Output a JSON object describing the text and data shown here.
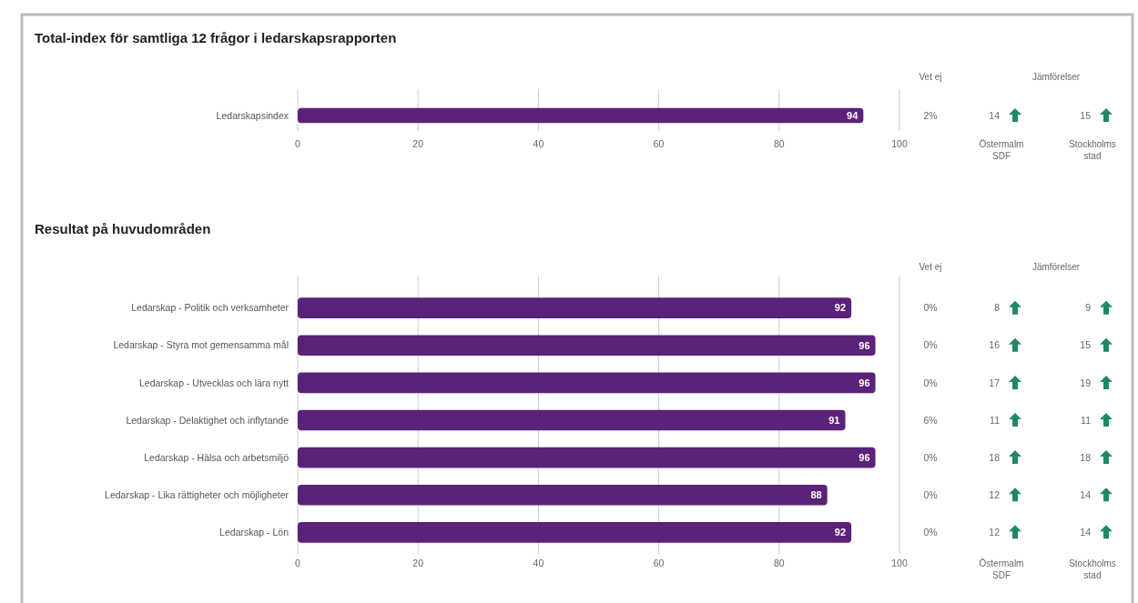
{
  "chart_data": [
    {
      "type": "bar",
      "orientation": "horizontal",
      "title": "Total-index för samtliga 12 frågor i ledarskapsrapporten",
      "categories": [
        "Ledarskapsindex"
      ],
      "values": [
        94
      ],
      "color": "#5c2178",
      "xlim": [
        0,
        100
      ],
      "xticks": [
        0,
        20,
        40,
        60,
        80,
        100
      ],
      "grid": "x",
      "data_labels": true,
      "annotations": [
        "Vet ej",
        "Jämförelser",
        "2%",
        "14",
        "15",
        "Östermalm SDF",
        "Stockholms stad"
      ]
    },
    {
      "type": "bar",
      "orientation": "horizontal",
      "title": "Resultat på huvudområden",
      "categories": [
        "Ledarskap - Politik och verksamheter",
        "Ledarskap - Styra mot gemensamma mål",
        "Ledarskap - Utvecklas och lära nytt",
        "Ledarskap - Delaktighet och inflytande",
        "Ledarskap - Hälsa och arbetsmiljö",
        "Ledarskap - Lika rättigheter och möjligheter",
        "Ledarskap - Lön"
      ],
      "values": [
        92,
        96,
        96,
        91,
        96,
        88,
        92
      ],
      "color": "#5c2178",
      "xlim": [
        0,
        100
      ],
      "xticks": [
        0,
        20,
        40,
        60,
        80,
        100
      ],
      "grid": "x",
      "data_labels": true,
      "annotations": [
        "Vet ej",
        "Jämförelser",
        "0%",
        "8",
        "9",
        "0%",
        "16",
        "15",
        "0%",
        "17",
        "19",
        "6%",
        "11",
        "11",
        "0%",
        "18",
        "18",
        "0%",
        "12",
        "14",
        "0%",
        "12",
        "14",
        "Östermalm SDF",
        "Stockholms stad"
      ]
    }
  ]
}
